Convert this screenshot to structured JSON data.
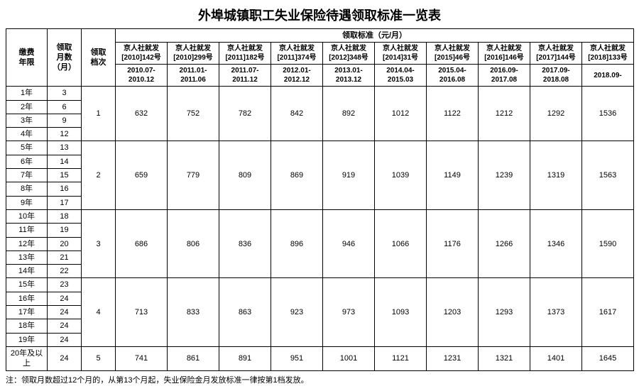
{
  "title": "外埠城镇职工失业保险待遇领取标准一览表",
  "header": {
    "col_year": "缴费\n年限",
    "col_month": "领取\n月数\n（月）",
    "col_tier": "领取\n档次",
    "std_group": "领取标准（元/月）",
    "docs": [
      "京人社就发[2010]142号",
      "京人社就发[2010]299号",
      "京人社就发[2011]182号",
      "京人社就发[2011]374号",
      "京人社就发[2012]348号",
      "京人社就发[2014]31号",
      "京人社就发[2015]46号",
      "京人社就发[2016]146号",
      "京人社就发[2017]144号",
      "京人社就发[2018]133号"
    ],
    "periods": [
      "2010.07-2010.12",
      "2011.01-2011.06",
      "2011.07-2011.12",
      "2012.01-2012.12",
      "2013.01-2013.12",
      "2014.04-2015.03",
      "2015.04-2016.08",
      "2016.09-2017.08",
      "2017.09-2018.08",
      "2018.09-"
    ]
  },
  "years": [
    "1年",
    "2年",
    "3年",
    "4年",
    "5年",
    "6年",
    "7年",
    "8年",
    "9年",
    "10年",
    "11年",
    "12年",
    "13年",
    "14年",
    "15年",
    "16年",
    "17年",
    "18年",
    "19年",
    "20年及以上"
  ],
  "months": [
    "3",
    "6",
    "9",
    "12",
    "13",
    "14",
    "15",
    "16",
    "17",
    "18",
    "19",
    "20",
    "21",
    "22",
    "23",
    "24",
    "24",
    "24",
    "24",
    "24"
  ],
  "tiers": [
    {
      "label": "1",
      "rowspan": 4,
      "values": [
        "632",
        "752",
        "782",
        "842",
        "892",
        "1012",
        "1122",
        "1212",
        "1292",
        "1536"
      ]
    },
    {
      "label": "2",
      "rowspan": 5,
      "values": [
        "659",
        "779",
        "809",
        "869",
        "919",
        "1039",
        "1149",
        "1239",
        "1319",
        "1563"
      ]
    },
    {
      "label": "3",
      "rowspan": 5,
      "values": [
        "686",
        "806",
        "836",
        "896",
        "946",
        "1066",
        "1176",
        "1266",
        "1346",
        "1590"
      ]
    },
    {
      "label": "4",
      "rowspan": 5,
      "values": [
        "713",
        "833",
        "863",
        "923",
        "973",
        "1093",
        "1203",
        "1293",
        "1373",
        "1617"
      ]
    },
    {
      "label": "5",
      "rowspan": 1,
      "values": [
        "741",
        "861",
        "891",
        "951",
        "1001",
        "1121",
        "1231",
        "1321",
        "1401",
        "1645"
      ]
    }
  ],
  "footnote": "注：领取月数超过12个月的，从第13个月起，失业保险金月发放标准一律按第1档发放。",
  "colors": {
    "border": "#000000",
    "bg": "#ffffff"
  }
}
